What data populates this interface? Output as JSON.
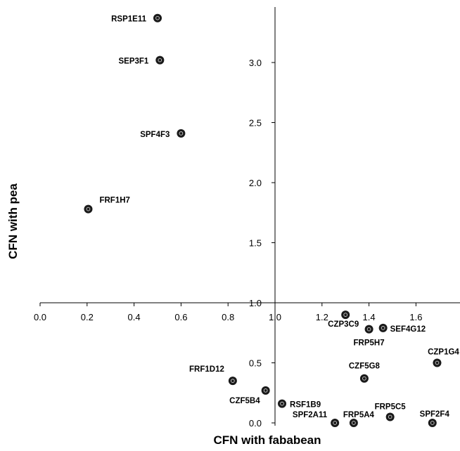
{
  "chart_data": {
    "type": "scatter",
    "xlabel": "CFN with fababean",
    "ylabel": "CFN with pea",
    "x_ticks": [
      "0.0",
      "0.2",
      "0.4",
      "0.6",
      "0.8",
      "1.0",
      "1.2",
      "1.4",
      "1.6"
    ],
    "y_ticks": [
      "0.0",
      "0.5",
      "1.0",
      "1.5",
      "2.0",
      "2.5",
      "3.0"
    ],
    "xlim": [
      0,
      1.8
    ],
    "ylim": [
      0,
      3.45
    ],
    "axis_cross": {
      "x": 1.0,
      "y": 1.0
    },
    "grid": false,
    "points": [
      {
        "label": "RSP1E11",
        "x": 0.5,
        "y": 3.37
      },
      {
        "label": "SEP3F1",
        "x": 0.51,
        "y": 3.02
      },
      {
        "label": "SPF4F3",
        "x": 0.6,
        "y": 2.41
      },
      {
        "label": "FRF1H7",
        "x": 0.205,
        "y": 1.78
      },
      {
        "label": "CZP3C9",
        "x": 1.3,
        "y": 0.9
      },
      {
        "label": "FRP5H7",
        "x": 1.4,
        "y": 0.78
      },
      {
        "label": "SEF4G12",
        "x": 1.46,
        "y": 0.79
      },
      {
        "label": "CZP1G4",
        "x": 1.69,
        "y": 0.5
      },
      {
        "label": "CZF5G8",
        "x": 1.38,
        "y": 0.37
      },
      {
        "label": "FRF1D12",
        "x": 0.82,
        "y": 0.35
      },
      {
        "label": "CZF5B4",
        "x": 0.96,
        "y": 0.27
      },
      {
        "label": "RSF1B9",
        "x": 1.03,
        "y": 0.16
      },
      {
        "label": "SPF2A11",
        "x": 1.255,
        "y": 0.0
      },
      {
        "label": "FRP5A4",
        "x": 1.335,
        "y": 0.0
      },
      {
        "label": "FRP5C5",
        "x": 1.49,
        "y": 0.05
      },
      {
        "label": "SPF2F4",
        "x": 1.67,
        "y": 0.0
      }
    ]
  }
}
